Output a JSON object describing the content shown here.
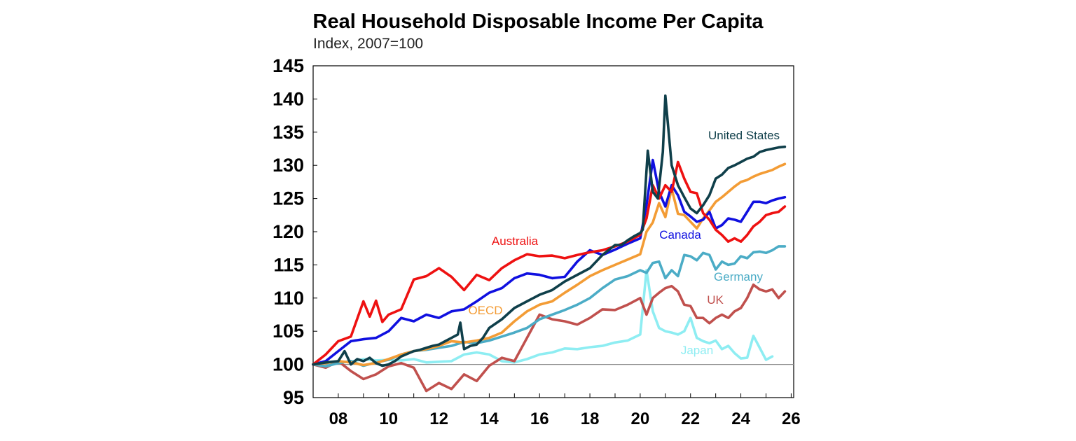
{
  "chart_data": {
    "type": "line",
    "title": "Real Household Disposable Income Per Capita",
    "subtitle": "Index, 2007=100",
    "xlabel": "",
    "ylabel": "",
    "xlim": [
      2007.0,
      2026.1
    ],
    "ylim": [
      95,
      145
    ],
    "yticks": [
      95,
      100,
      105,
      110,
      115,
      120,
      125,
      130,
      135,
      140,
      145
    ],
    "xticks": [
      {
        "value": 2008,
        "label": "08"
      },
      {
        "value": 2010,
        "label": "10"
      },
      {
        "value": 2012,
        "label": "12"
      },
      {
        "value": 2014,
        "label": "14"
      },
      {
        "value": 2016,
        "label": "16"
      },
      {
        "value": 2018,
        "label": "18"
      },
      {
        "value": 2020,
        "label": "20"
      },
      {
        "value": 2022,
        "label": "22"
      },
      {
        "value": 2024,
        "label": "24"
      },
      {
        "value": 2026,
        "label": "26"
      }
    ],
    "reference_line": 100,
    "grid": false,
    "legend": "inline labels",
    "series": [
      {
        "name": "Japan",
        "color": "#8eedf2",
        "x": [
          2007,
          2007.5,
          2008,
          2008.5,
          2009,
          2009.5,
          2010,
          2010.5,
          2011,
          2011.5,
          2012,
          2012.5,
          2013,
          2013.5,
          2014,
          2014.5,
          2015,
          2015.5,
          2016,
          2016.5,
          2017,
          2017.5,
          2018,
          2018.5,
          2019,
          2019.5,
          2020,
          2020.25,
          2020.5,
          2020.75,
          2021,
          2021.25,
          2021.5,
          2021.75,
          2022,
          2022.25,
          2022.5,
          2022.75,
          2023,
          2023.25,
          2023.5,
          2023.75,
          2024,
          2024.25,
          2024.5,
          2024.75,
          2025,
          2025.25
        ],
        "y": [
          100,
          100.2,
          100.3,
          100.4,
          100.8,
          100.6,
          100.7,
          100.6,
          100.8,
          100.3,
          100.4,
          100.5,
          101.5,
          101.8,
          101.5,
          100.5,
          100.3,
          100.8,
          101.5,
          101.8,
          102.4,
          102.3,
          102.6,
          102.8,
          103.3,
          103.6,
          104.5,
          114.2,
          108,
          105.5,
          105,
          104.8,
          104.5,
          105,
          107,
          104,
          103.5,
          103.2,
          103.6,
          102.3,
          102.8,
          101.7,
          100.9,
          101,
          104.3,
          102.5,
          100.7,
          101.2
        ]
      },
      {
        "name": "UK",
        "color": "#c0504d",
        "x": [
          2007,
          2007.5,
          2008,
          2008.5,
          2009,
          2009.5,
          2010,
          2010.5,
          2011,
          2011.5,
          2012,
          2012.5,
          2013,
          2013.5,
          2014,
          2014.5,
          2015,
          2015.5,
          2016,
          2016.5,
          2017,
          2017.5,
          2018,
          2018.5,
          2019,
          2019.5,
          2020,
          2020.25,
          2020.5,
          2020.75,
          2021,
          2021.25,
          2021.5,
          2021.75,
          2022,
          2022.25,
          2022.5,
          2022.75,
          2023,
          2023.25,
          2023.5,
          2023.75,
          2024,
          2024.25,
          2024.5,
          2024.75,
          2025,
          2025.25,
          2025.5,
          2025.75
        ],
        "y": [
          100,
          99.5,
          100.5,
          99,
          97.8,
          98.5,
          99.7,
          100.2,
          99.5,
          96,
          97.2,
          96.3,
          98.5,
          97.5,
          99.8,
          101,
          100.5,
          104,
          107.5,
          106.8,
          106.5,
          106,
          107,
          108.3,
          108.2,
          109,
          110,
          107.5,
          110,
          110.8,
          111.5,
          111.8,
          111,
          109,
          108.8,
          107,
          107,
          106.2,
          107,
          107.5,
          107,
          108,
          108.5,
          110,
          112,
          111.3,
          111,
          111.3,
          110,
          111
        ]
      },
      {
        "name": "Germany",
        "color": "#4bacc6",
        "x": [
          2007,
          2007.5,
          2008,
          2008.5,
          2009,
          2009.5,
          2010,
          2010.5,
          2011,
          2011.5,
          2012,
          2012.5,
          2013,
          2013.5,
          2014,
          2014.5,
          2015,
          2015.5,
          2016,
          2016.5,
          2017,
          2017.5,
          2018,
          2018.5,
          2019,
          2019.5,
          2020,
          2020.25,
          2020.5,
          2020.75,
          2021,
          2021.25,
          2021.5,
          2021.75,
          2022,
          2022.25,
          2022.5,
          2022.75,
          2023,
          2023.25,
          2023.5,
          2023.75,
          2024,
          2024.25,
          2024.5,
          2024.75,
          2025,
          2025.25,
          2025.5,
          2025.75
        ],
        "y": [
          100,
          99.7,
          100.2,
          100.5,
          99.8,
          100.3,
          100.7,
          101.5,
          102,
          102.2,
          102.5,
          102.8,
          103.4,
          103.2,
          103.6,
          104.2,
          104.8,
          105.5,
          106.8,
          107.5,
          108.2,
          109,
          110,
          111.5,
          112.8,
          113.3,
          114.2,
          113.8,
          115.3,
          115.5,
          113,
          114.2,
          113.3,
          116.5,
          116.3,
          115.7,
          116.8,
          116.5,
          114.3,
          115.5,
          115,
          115.2,
          116.3,
          116,
          116.9,
          117,
          116.8,
          117.2,
          117.8,
          117.8
        ]
      },
      {
        "name": "OECD",
        "color": "#f39c35",
        "x": [
          2007,
          2007.5,
          2008,
          2008.5,
          2009,
          2009.5,
          2010,
          2010.5,
          2011,
          2011.5,
          2012,
          2012.5,
          2013,
          2013.5,
          2014,
          2014.5,
          2015,
          2015.5,
          2016,
          2016.5,
          2017,
          2017.5,
          2018,
          2018.5,
          2019,
          2019.5,
          2020,
          2020.25,
          2020.5,
          2020.75,
          2021,
          2021.25,
          2021.5,
          2021.75,
          2022,
          2022.25,
          2022.5,
          2022.75,
          2023,
          2023.25,
          2023.5,
          2023.75,
          2024,
          2024.25,
          2024.5,
          2024.75,
          2025,
          2025.25,
          2025.5,
          2025.75
        ],
        "y": [
          100,
          100.2,
          100.5,
          100.3,
          99.9,
          100.2,
          100.8,
          101.5,
          102,
          102.3,
          102.8,
          103.5,
          103.3,
          103.6,
          104,
          104.8,
          106.5,
          108,
          109,
          109.5,
          110.8,
          112,
          113.3,
          114.2,
          115,
          115.8,
          116.6,
          120,
          121.4,
          124.3,
          122.2,
          126.5,
          122.7,
          122.5,
          121.5,
          120.5,
          122,
          123.2,
          124.5,
          125.2,
          126,
          126.8,
          127.5,
          127.8,
          128.3,
          128.7,
          129,
          129.3,
          129.8,
          130.2
        ]
      },
      {
        "name": "Canada",
        "color": "#1010e0",
        "x": [
          2007,
          2007.5,
          2008,
          2008.5,
          2009,
          2009.5,
          2010,
          2010.5,
          2011,
          2011.5,
          2012,
          2012.5,
          2013,
          2013.5,
          2014,
          2014.5,
          2015,
          2015.5,
          2016,
          2016.5,
          2017,
          2017.5,
          2018,
          2018.5,
          2019,
          2019.5,
          2020,
          2020.25,
          2020.5,
          2020.75,
          2021,
          2021.25,
          2021.5,
          2021.75,
          2022,
          2022.25,
          2022.5,
          2022.75,
          2023,
          2023.25,
          2023.5,
          2023.75,
          2024,
          2024.25,
          2024.5,
          2024.75,
          2025,
          2025.25,
          2025.5,
          2025.75
        ],
        "y": [
          100,
          100.5,
          102,
          103.5,
          103.8,
          104,
          105,
          107,
          106.5,
          107.5,
          107,
          108,
          108.3,
          109.5,
          110.8,
          111.5,
          113,
          113.7,
          113.5,
          113,
          113.2,
          115.5,
          117.2,
          116.5,
          117.3,
          118.2,
          119,
          124,
          130.8,
          126,
          123.8,
          127,
          125.5,
          123,
          122.3,
          121.5,
          121.8,
          123,
          120.5,
          121,
          122,
          121.8,
          121.5,
          123,
          124.5,
          124.5,
          124.3,
          124.7,
          125,
          125.2
        ]
      },
      {
        "name": "Australia",
        "color": "#ee1111",
        "x": [
          2007,
          2007.5,
          2008,
          2008.5,
          2009,
          2009.25,
          2009.5,
          2009.75,
          2010,
          2010.5,
          2011,
          2011.5,
          2012,
          2012.5,
          2013,
          2013.5,
          2014,
          2014.5,
          2015,
          2015.5,
          2016,
          2016.5,
          2017,
          2017.5,
          2018,
          2018.5,
          2019,
          2019.5,
          2020,
          2020.25,
          2020.5,
          2020.75,
          2021,
          2021.25,
          2021.5,
          2021.75,
          2022,
          2022.25,
          2022.5,
          2022.75,
          2023,
          2023.25,
          2023.5,
          2023.75,
          2024,
          2024.25,
          2024.5,
          2024.75,
          2025,
          2025.25,
          2025.5,
          2025.75
        ],
        "y": [
          100,
          101.5,
          103.5,
          104.2,
          109.5,
          107.2,
          109.6,
          106.4,
          107.5,
          108.3,
          112.8,
          113.3,
          114.5,
          113.2,
          111.2,
          113.5,
          112.7,
          114.5,
          115.7,
          116.6,
          116.3,
          116.4,
          116,
          116.5,
          116.9,
          117.2,
          117.8,
          118.5,
          119.5,
          122,
          127,
          125,
          127,
          126,
          130.5,
          128,
          126,
          125.8,
          122.8,
          121.8,
          120.3,
          119.5,
          118.5,
          119,
          118.5,
          119.5,
          120.8,
          121.5,
          122.5,
          122.8,
          123,
          123.8
        ]
      },
      {
        "name": "United States",
        "color": "#0f3f4a",
        "x": [
          2007,
          2007.5,
          2008,
          2008.25,
          2008.5,
          2008.75,
          2009,
          2009.25,
          2009.5,
          2009.75,
          2010,
          2010.25,
          2010.5,
          2010.75,
          2011,
          2011.25,
          2011.5,
          2011.75,
          2012,
          2012.25,
          2012.5,
          2012.75,
          2012.85,
          2013,
          2013.25,
          2013.5,
          2013.75,
          2014,
          2014.5,
          2015,
          2015.5,
          2016,
          2016.5,
          2017,
          2017.5,
          2018,
          2018.5,
          2019,
          2019.25,
          2019.5,
          2019.75,
          2020,
          2020.1,
          2020.3,
          2020.5,
          2020.7,
          2020.9,
          2021,
          2021.25,
          2021.5,
          2021.75,
          2022,
          2022.25,
          2022.5,
          2022.75,
          2023,
          2023.25,
          2023.5,
          2023.75,
          2024,
          2024.25,
          2024.5,
          2024.75,
          2025,
          2025.25,
          2025.5,
          2025.75
        ],
        "y": [
          100,
          100.3,
          100.5,
          102,
          100,
          100.8,
          100.5,
          101,
          100.2,
          99.8,
          100,
          100.5,
          101.2,
          101.6,
          102,
          102.2,
          102.5,
          102.8,
          103,
          103.5,
          104,
          104.5,
          106.3,
          102.3,
          102.8,
          103,
          104,
          105.5,
          106.8,
          108.5,
          109.5,
          110.5,
          111.2,
          112.5,
          113.5,
          114.5,
          116.5,
          118,
          118,
          118.7,
          119.3,
          119.8,
          120.3,
          132.2,
          126,
          125,
          132,
          140.5,
          130,
          127,
          125.2,
          123.5,
          122.8,
          124,
          125.5,
          128,
          128.6,
          129.6,
          130,
          130.5,
          131,
          131.3,
          132,
          132.3,
          132.5,
          132.7,
          132.8
        ]
      }
    ]
  },
  "labels": [
    {
      "key": "Australia",
      "text": "Australia",
      "color": "#ee1111"
    },
    {
      "key": "Canada",
      "text": "Canada",
      "color": "#1010e0"
    },
    {
      "key": "United States",
      "text": "United States",
      "color": "#0f3f4a"
    },
    {
      "key": "OECD",
      "text": "OECD",
      "color": "#f39c35"
    },
    {
      "key": "Germany",
      "text": "Germany",
      "color": "#4bacc6"
    },
    {
      "key": "UK",
      "text": "UK",
      "color": "#c0504d"
    },
    {
      "key": "Japan",
      "text": "Japan",
      "color": "#8eedf2"
    }
  ]
}
